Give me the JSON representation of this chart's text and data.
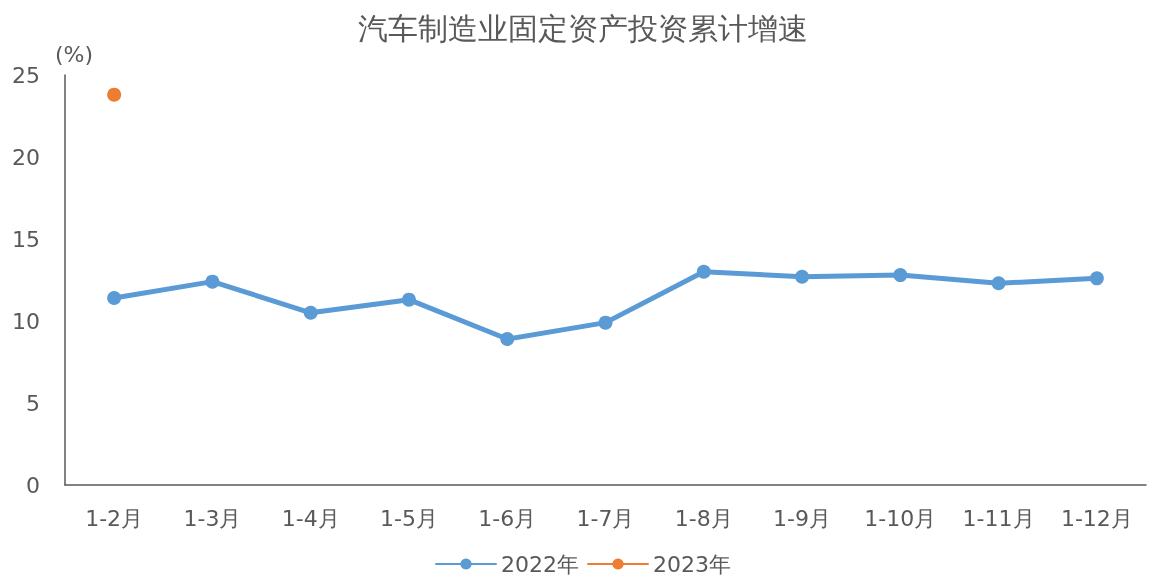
{
  "chart_data": {
    "type": "line",
    "title": "汽车制造业固定资产投资累计增速",
    "ylabel": "(%)",
    "categories": [
      "1-2月",
      "1-3月",
      "1-4月",
      "1-5月",
      "1-6月",
      "1-7月",
      "1-8月",
      "1-9月",
      "1-10月",
      "1-11月",
      "1-12月"
    ],
    "series": [
      {
        "name": "2022年",
        "color": "#5b9bd5",
        "values": [
          11.4,
          12.4,
          10.5,
          11.3,
          8.9,
          9.9,
          13.0,
          12.7,
          12.8,
          12.3,
          12.6
        ]
      },
      {
        "name": "2023年",
        "color": "#ed7d31",
        "values": [
          23.8,
          null,
          null,
          null,
          null,
          null,
          null,
          null,
          null,
          null,
          null
        ]
      }
    ],
    "ylim": [
      0,
      25
    ],
    "yticks": [
      0,
      5,
      10,
      15,
      20,
      25
    ],
    "grid": false,
    "legend": "bottom",
    "marker": "circle",
    "line_style": "solid"
  }
}
